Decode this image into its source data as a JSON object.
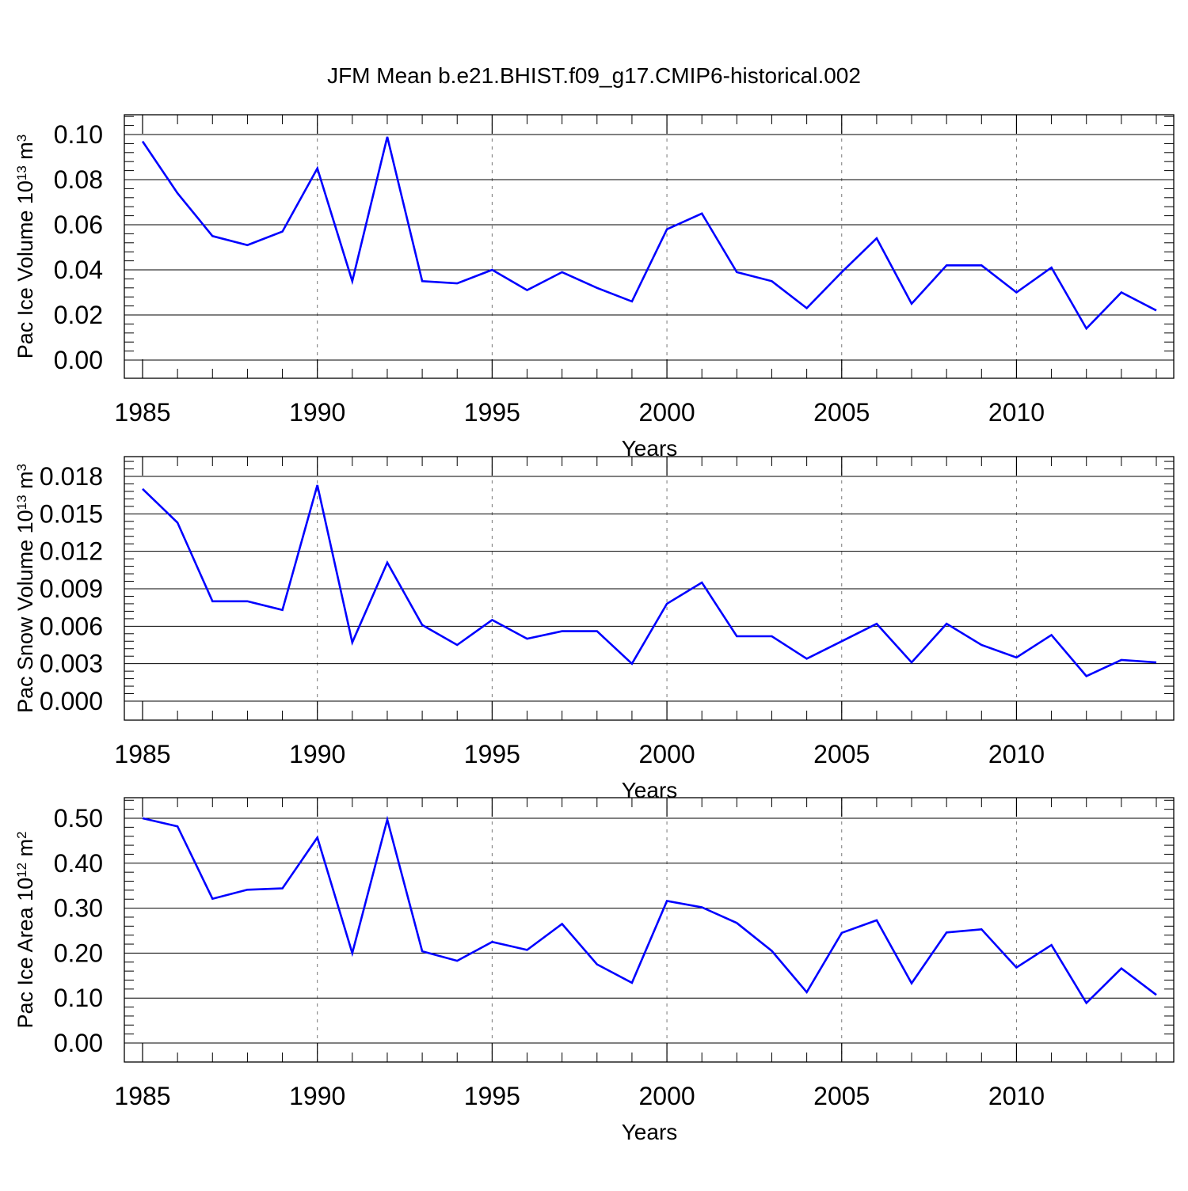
{
  "title": "JFM Mean b.e21.BHIST.f09_g17.CMIP6-historical.002",
  "chart_data": [
    {
      "type": "line",
      "ylabel": "Pac Ice Volume 10",
      "ylabel_exp": "13",
      "ylabel_unit": " m",
      "ylabel_unit_exp": "3",
      "xlabel": "Years",
      "ylim": [
        0,
        0.1
      ],
      "yticks": [
        "0.00",
        "0.02",
        "0.04",
        "0.06",
        "0.08",
        "0.10"
      ],
      "xlim": [
        1985,
        2014
      ],
      "xticks": [
        "1985",
        "1990",
        "1995",
        "2000",
        "2005",
        "2010"
      ],
      "line_color": "#0000ff",
      "series": [
        {
          "x": [
            1985,
            1986,
            1987,
            1988,
            1989,
            1990,
            1991,
            1992,
            1993,
            1994,
            1995,
            1996,
            1997,
            1998,
            1999,
            2000,
            2001,
            2002,
            2003,
            2004,
            2005,
            2006,
            2007,
            2008,
            2009,
            2010,
            2011,
            2012,
            2013,
            2014
          ],
          "values": [
            0.097,
            0.074,
            0.055,
            0.051,
            0.057,
            0.085,
            0.035,
            0.099,
            0.035,
            0.034,
            0.04,
            0.031,
            0.039,
            0.032,
            0.026,
            0.058,
            0.065,
            0.039,
            0.035,
            0.023,
            0.039,
            0.054,
            0.025,
            0.042,
            0.042,
            0.03,
            0.041,
            0.014,
            0.03,
            0.022
          ]
        }
      ]
    },
    {
      "type": "line",
      "ylabel": "Pac Snow Volume 10",
      "ylabel_exp": "13",
      "ylabel_unit": " m",
      "ylabel_unit_exp": "3",
      "xlabel": "Years",
      "ylim": [
        0,
        0.018
      ],
      "yticks": [
        "0.000",
        "0.003",
        "0.006",
        "0.009",
        "0.012",
        "0.015",
        "0.018"
      ],
      "xlim": [
        1985,
        2014
      ],
      "xticks": [
        "1985",
        "1990",
        "1995",
        "2000",
        "2005",
        "2010"
      ],
      "line_color": "#0000ff",
      "series": [
        {
          "x": [
            1985,
            1986,
            1987,
            1988,
            1989,
            1990,
            1991,
            1992,
            1993,
            1994,
            1995,
            1996,
            1997,
            1998,
            1999,
            2000,
            2001,
            2002,
            2003,
            2004,
            2005,
            2006,
            2007,
            2008,
            2009,
            2010,
            2011,
            2012,
            2013,
            2014
          ],
          "values": [
            0.017,
            0.0143,
            0.008,
            0.008,
            0.0073,
            0.0173,
            0.0047,
            0.0111,
            0.0061,
            0.0045,
            0.0065,
            0.005,
            0.0056,
            0.0056,
            0.003,
            0.0078,
            0.0095,
            0.0052,
            0.0052,
            0.0034,
            0.0048,
            0.0062,
            0.0031,
            0.0062,
            0.0045,
            0.0035,
            0.0053,
            0.002,
            0.0033,
            0.0031
          ]
        }
      ]
    },
    {
      "type": "line",
      "ylabel": "Pac Ice Area 10",
      "ylabel_exp": "12",
      "ylabel_unit": " m",
      "ylabel_unit_exp": "2",
      "xlabel": "Years",
      "ylim": [
        0,
        0.5
      ],
      "yticks": [
        "0.00",
        "0.10",
        "0.20",
        "0.30",
        "0.40",
        "0.50"
      ],
      "xlim": [
        1985,
        2014
      ],
      "xticks": [
        "1985",
        "1990",
        "1995",
        "2000",
        "2005",
        "2010"
      ],
      "line_color": "#0000ff",
      "series": [
        {
          "x": [
            1985,
            1986,
            1987,
            1988,
            1989,
            1990,
            1991,
            1992,
            1993,
            1994,
            1995,
            1996,
            1997,
            1998,
            1999,
            2000,
            2001,
            2002,
            2003,
            2004,
            2005,
            2006,
            2007,
            2008,
            2009,
            2010,
            2011,
            2012,
            2013,
            2014
          ],
          "values": [
            0.5,
            0.482,
            0.321,
            0.341,
            0.344,
            0.457,
            0.2,
            0.497,
            0.204,
            0.183,
            0.225,
            0.207,
            0.265,
            0.175,
            0.134,
            0.316,
            0.302,
            0.267,
            0.205,
            0.113,
            0.245,
            0.273,
            0.133,
            0.246,
            0.253,
            0.168,
            0.218,
            0.089,
            0.166,
            0.107
          ]
        }
      ]
    }
  ]
}
